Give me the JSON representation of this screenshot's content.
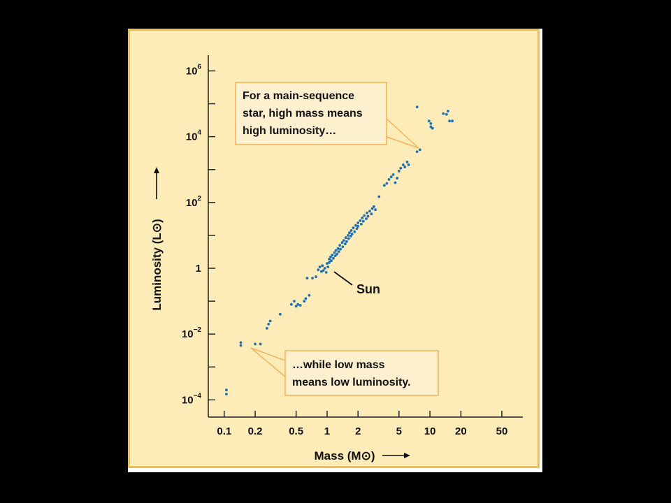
{
  "chart_data": {
    "type": "scatter",
    "xlabel": "Mass (M⊙)",
    "ylabel": "Luminosity (L⊙)",
    "xscale": "log",
    "yscale": "log",
    "xlim": [
      0.07,
      80
    ],
    "ylim": [
      3e-05,
      3000000
    ],
    "x_ticks": [
      {
        "value": 0.1,
        "label": "0.1"
      },
      {
        "value": 0.2,
        "label": "0.2"
      },
      {
        "value": 0.5,
        "label": "0.5"
      },
      {
        "value": 1,
        "label": "1"
      },
      {
        "value": 2,
        "label": "2"
      },
      {
        "value": 5,
        "label": "5"
      },
      {
        "value": 10,
        "label": "10"
      },
      {
        "value": 20,
        "label": "20"
      },
      {
        "value": 50,
        "label": "50"
      }
    ],
    "y_ticks": [
      {
        "value": 0.0001,
        "base": "10",
        "exp": "−4"
      },
      {
        "value": 0.01,
        "base": "10",
        "exp": "−2"
      },
      {
        "value": 1,
        "base": "1",
        "exp": ""
      },
      {
        "value": 100,
        "base": "10",
        "exp": "2"
      },
      {
        "value": 10000,
        "base": "10",
        "exp": "4"
      },
      {
        "value": 1000000,
        "base": "10",
        "exp": "6"
      }
    ],
    "y_minor_ticks": [
      0.001,
      0.1,
      10,
      1000,
      100000
    ],
    "grid": false,
    "legend": "none",
    "marker_color": "#1d6fb3",
    "annotations": [
      {
        "id": "high",
        "lines": [
          "For a main-sequence",
          "star, high mass means",
          "high luminosity…"
        ],
        "points_to": [
          8,
          4000
        ]
      },
      {
        "id": "sun",
        "lines": [
          "Sun"
        ],
        "points_to": [
          1,
          0.8
        ]
      },
      {
        "id": "low",
        "lines": [
          "…while low mass",
          "means low luminosity."
        ],
        "points_to": [
          0.15,
          0.004
        ]
      }
    ],
    "points": [
      [
        0.105,
        0.00015
      ],
      [
        0.105,
        0.0002
      ],
      [
        0.145,
        0.0045
      ],
      [
        0.145,
        0.0055
      ],
      [
        0.2,
        0.005
      ],
      [
        0.225,
        0.005
      ],
      [
        0.26,
        0.015
      ],
      [
        0.27,
        0.02
      ],
      [
        0.28,
        0.025
      ],
      [
        0.35,
        0.04
      ],
      [
        0.45,
        0.08
      ],
      [
        0.48,
        0.1
      ],
      [
        0.5,
        0.07
      ],
      [
        0.52,
        0.08
      ],
      [
        0.55,
        0.075
      ],
      [
        0.6,
        0.1
      ],
      [
        0.62,
        0.12
      ],
      [
        0.67,
        0.15
      ],
      [
        0.64,
        0.5
      ],
      [
        0.72,
        0.5
      ],
      [
        0.78,
        0.55
      ],
      [
        0.82,
        0.9
      ],
      [
        0.85,
        1.1
      ],
      [
        0.88,
        0.8
      ],
      [
        0.9,
        1.2
      ],
      [
        0.92,
        0.85
      ],
      [
        0.95,
        1.0
      ],
      [
        0.98,
        0.75
      ],
      [
        1.0,
        1.4
      ],
      [
        1.02,
        1.1
      ],
      [
        1.05,
        1.9
      ],
      [
        1.05,
        1.5
      ],
      [
        1.08,
        2.2
      ],
      [
        1.1,
        1.7
      ],
      [
        1.12,
        2.5
      ],
      [
        1.15,
        2.0
      ],
      [
        1.18,
        3.0
      ],
      [
        1.2,
        2.4
      ],
      [
        1.22,
        3.5
      ],
      [
        1.25,
        2.7
      ],
      [
        1.28,
        4.0
      ],
      [
        1.3,
        3.2
      ],
      [
        1.33,
        5.0
      ],
      [
        1.35,
        3.8
      ],
      [
        1.4,
        6.0
      ],
      [
        1.42,
        4.5
      ],
      [
        1.45,
        7.0
      ],
      [
        1.5,
        5.5
      ],
      [
        1.52,
        8.5
      ],
      [
        1.55,
        6.5
      ],
      [
        1.6,
        10
      ],
      [
        1.62,
        8
      ],
      [
        1.65,
        12
      ],
      [
        1.7,
        9.5
      ],
      [
        1.72,
        14
      ],
      [
        1.75,
        11
      ],
      [
        1.8,
        17
      ],
      [
        1.85,
        13
      ],
      [
        1.9,
        20
      ],
      [
        1.95,
        16
      ],
      [
        2.0,
        24
      ],
      [
        2.0,
        19
      ],
      [
        2.1,
        28
      ],
      [
        2.15,
        22
      ],
      [
        2.2,
        34
      ],
      [
        2.25,
        27
      ],
      [
        2.3,
        40
      ],
      [
        2.4,
        32
      ],
      [
        2.45,
        48
      ],
      [
        2.5,
        38
      ],
      [
        2.6,
        55
      ],
      [
        2.7,
        45
      ],
      [
        2.75,
        65
      ],
      [
        2.85,
        75
      ],
      [
        2.95,
        60
      ],
      [
        3.2,
        150
      ],
      [
        3.6,
        330
      ],
      [
        3.8,
        380
      ],
      [
        4.0,
        500
      ],
      [
        4.2,
        600
      ],
      [
        4.4,
        700
      ],
      [
        4.6,
        400
      ],
      [
        4.8,
        550
      ],
      [
        5.0,
        900
      ],
      [
        5.2,
        1100
      ],
      [
        5.5,
        1400
      ],
      [
        5.7,
        1200
      ],
      [
        6.0,
        1700
      ],
      [
        6.2,
        1400
      ],
      [
        7.5,
        3500
      ],
      [
        8.0,
        4000
      ],
      [
        7.5,
        80000
      ],
      [
        9.8,
        30000
      ],
      [
        10.2,
        20000
      ],
      [
        10.6,
        18000
      ],
      [
        10.2,
        25000
      ],
      [
        13.5,
        50000
      ],
      [
        14.5,
        48000
      ],
      [
        15,
        60000
      ],
      [
        15.5,
        30000
      ],
      [
        16.5,
        30000
      ]
    ]
  }
}
